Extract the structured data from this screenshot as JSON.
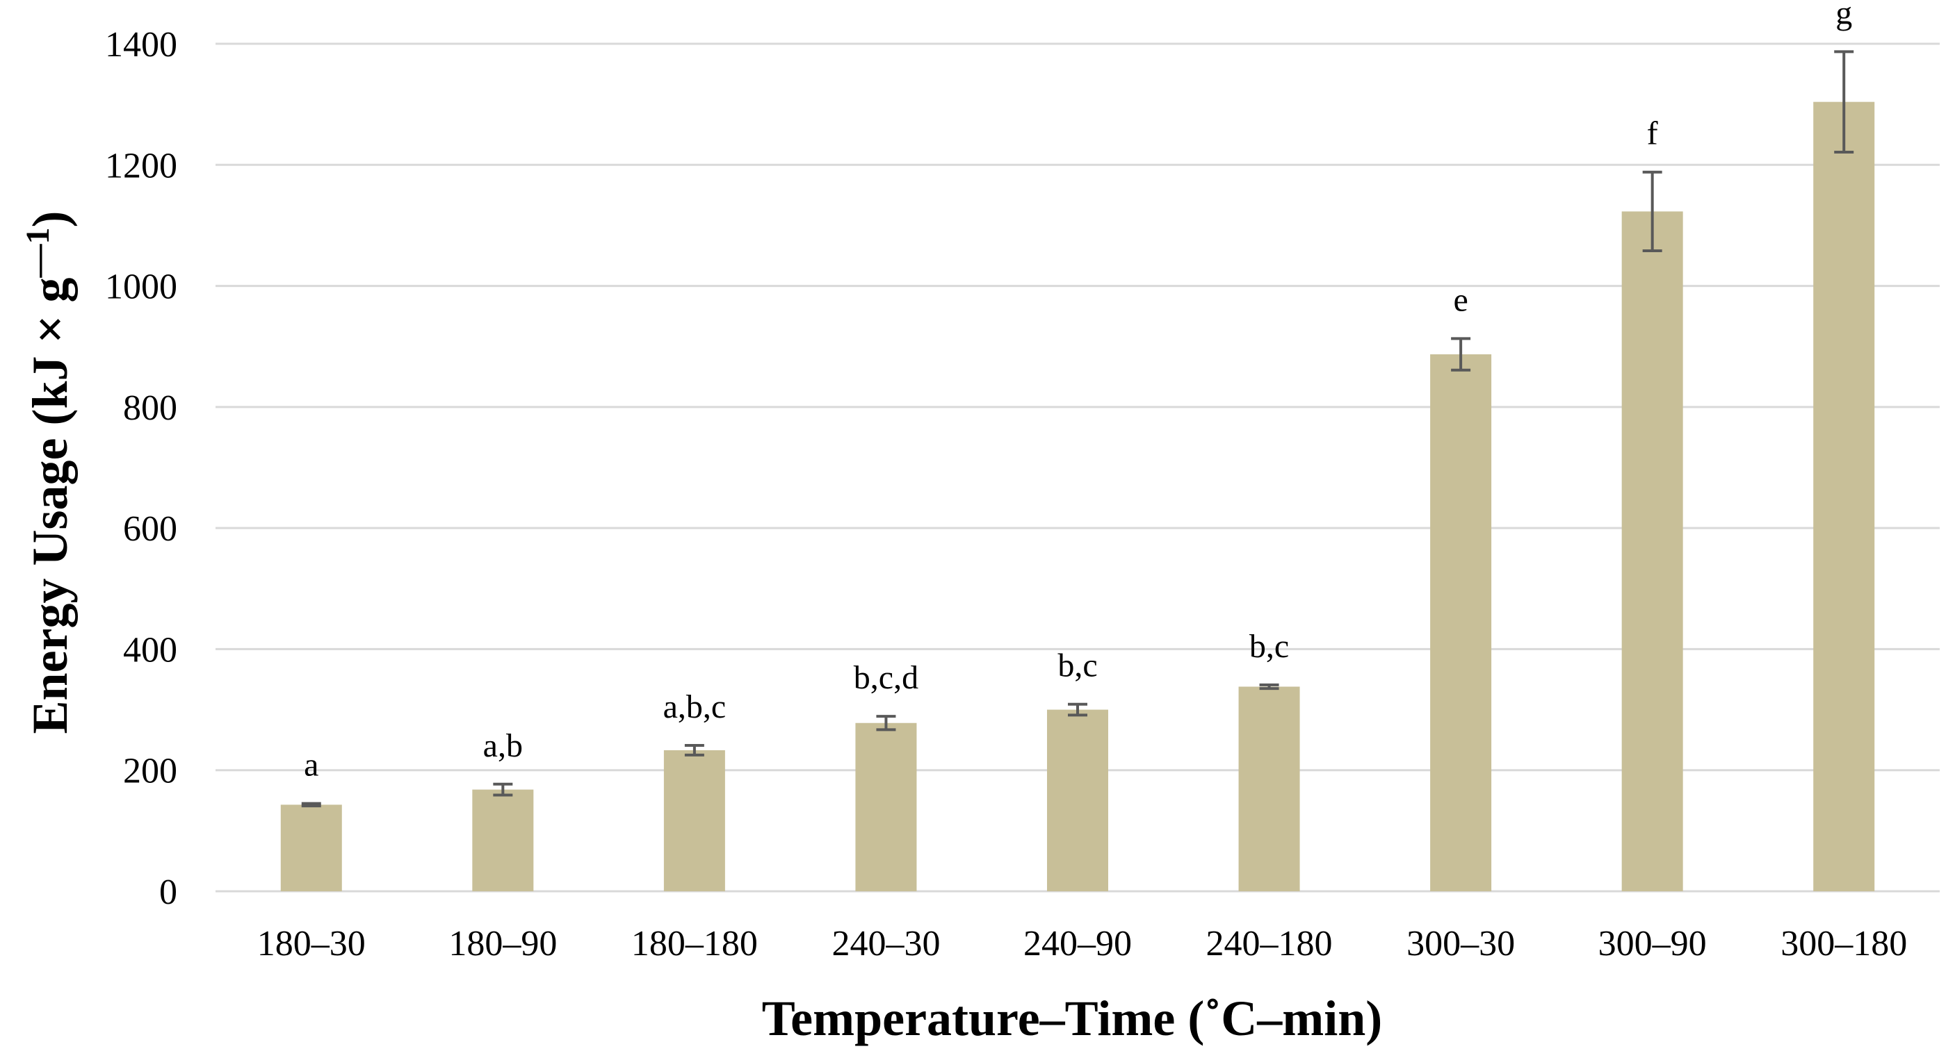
{
  "chart_data": {
    "type": "bar",
    "title": "",
    "xlabel": "Temperature–Time (˚C–min)",
    "ylabel": "Energy Usage (kJ × g",
    "ylabel_sup": "—1",
    "ylabel_close": ")",
    "ylim": [
      0,
      1400
    ],
    "yticks": [
      0,
      200,
      400,
      600,
      800,
      1000,
      1200,
      1400
    ],
    "grid": true,
    "bar_color": "#c8bf98",
    "error_color": "#595959",
    "grid_color": "#d9d9d9",
    "categories": [
      "180–30",
      "180–90",
      "180–180",
      "240–30",
      "240–90",
      "240–180",
      "300–30",
      "300–90",
      "300–180"
    ],
    "values": [
      143,
      168,
      233,
      278,
      300,
      338,
      887,
      1123,
      1304
    ],
    "errors": [
      2,
      9,
      8,
      11,
      9,
      3,
      26,
      65,
      83
    ],
    "significance": [
      "a",
      "a,b",
      "a,b,c",
      "b,c,d",
      "b,c",
      "b,c",
      "e",
      "f",
      "g"
    ]
  }
}
